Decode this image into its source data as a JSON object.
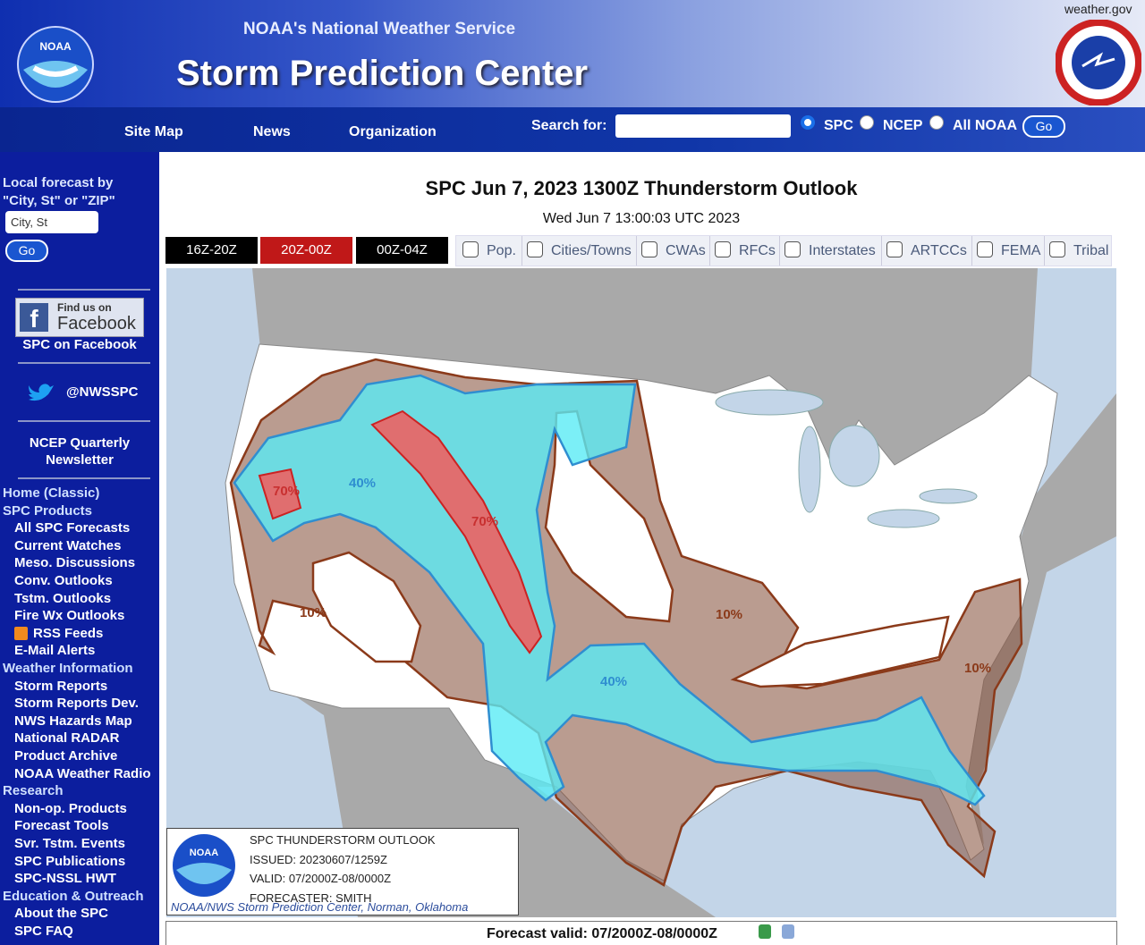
{
  "header": {
    "site_link": "weather.gov",
    "logo_text": "NOAA",
    "org": "NOAA's National Weather Service",
    "title": "Storm Prediction Center"
  },
  "nav": {
    "items": [
      "Site Map",
      "News",
      "Organization"
    ],
    "search_label": "Search for:",
    "scopes": [
      "SPC",
      "NCEP",
      "All NOAA"
    ],
    "go": "Go"
  },
  "sidebar": {
    "local_forecast": [
      "Local forecast by",
      "\"City, St\" or \"ZIP\""
    ],
    "placeholder": "City, St",
    "go": "Go",
    "facebook_badge": [
      "Find us on",
      "Facebook"
    ],
    "facebook_link": "SPC on Facebook",
    "twitter": "@NWSSPC",
    "newsletter": [
      "NCEP Quarterly",
      "Newsletter"
    ],
    "sections": [
      {
        "heading": "Home (Classic)",
        "items": []
      },
      {
        "heading": "SPC Products",
        "items": [
          "All SPC Forecasts",
          "Current Watches",
          "Meso. Discussions",
          "Conv. Outlooks",
          "Tstm. Outlooks",
          "Fire Wx Outlooks",
          "RSS Feeds",
          "E-Mail Alerts"
        ]
      },
      {
        "heading": "Weather Information",
        "items": [
          "Storm Reports",
          "Storm Reports Dev.",
          "NWS Hazards Map",
          "National RADAR",
          "Product Archive",
          "NOAA Weather Radio"
        ]
      },
      {
        "heading": "Research",
        "items": [
          "Non-op. Products",
          "Forecast Tools",
          "Svr. Tstm. Events",
          "SPC Publications",
          "SPC-NSSL HWT"
        ]
      },
      {
        "heading": "Education & Outreach",
        "items": [
          "About the SPC",
          "SPC FAQ"
        ]
      }
    ]
  },
  "main": {
    "title": "SPC Jun 7, 2023 1300Z Thunderstorm Outlook",
    "timestamp": "Wed Jun 7 13:00:03 UTC 2023",
    "tabs": [
      "16Z-20Z",
      "20Z-00Z",
      "00Z-04Z"
    ],
    "overlays": [
      "Pop.",
      "Cities/Towns",
      "CWAs",
      "RFCs",
      "Interstates",
      "ARTCCs",
      "FEMA",
      "Tribal"
    ],
    "map_labels": [
      "70%",
      "40%",
      "70%",
      "10%",
      "10%",
      "40%",
      "10%"
    ],
    "legend": {
      "logo_text": "NOAA",
      "lines": [
        "SPC THUNDERSTORM OUTLOOK",
        "ISSUED: 20230607/1259Z",
        "VALID: 07/2000Z-08/0000Z",
        "FORECASTER: SMITH"
      ],
      "credit": "NOAA/NWS Storm Prediction Center, Norman, Oklahoma"
    },
    "forecast_valid": "Forecast valid: 07/2000Z-08/0000Z"
  }
}
